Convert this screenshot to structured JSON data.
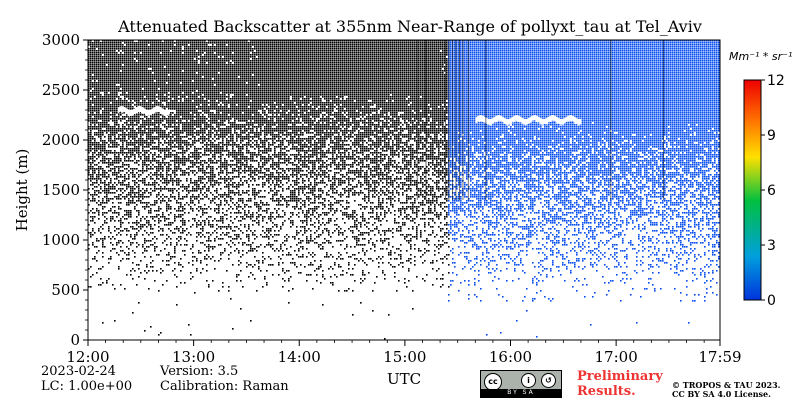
{
  "chart_data": {
    "type": "heatmap",
    "title": "Attenuated Backscatter at 355nm Near-Range of pollyxt_tau at Tel_Aviv",
    "xlabel": "UTC",
    "ylabel": "Height (m)",
    "x_ticks": [
      "12:00",
      "13:00",
      "14:00",
      "15:00",
      "16:00",
      "17:00",
      "17:59"
    ],
    "x_tick_minutes": [
      0,
      60,
      120,
      180,
      240,
      300,
      359
    ],
    "xlim_minutes": [
      0,
      359
    ],
    "y_ticks": [
      0,
      500,
      1000,
      1500,
      2000,
      2500,
      3000
    ],
    "ylim": [
      0,
      3000
    ],
    "colorbar": {
      "unit": "Mm⁻¹ * sr⁻¹",
      "ticks": [
        0,
        3,
        6,
        9,
        12
      ],
      "range": [
        0,
        12
      ],
      "colors": [
        "#0033dd",
        "#00a0dd",
        "#00c040",
        "#ffe000",
        "#ff7000",
        "#ee0000"
      ]
    },
    "regions": [
      {
        "name": "noise",
        "x_start_min": 0,
        "x_end_min": 205,
        "color": "#000000"
      },
      {
        "name": "signal",
        "x_start_min": 205,
        "x_end_min": 359,
        "color": "#0a50f0"
      }
    ],
    "cloud_layers": [
      {
        "x_start_min": 17,
        "x_end_min": 46,
        "height_m": 2290
      },
      {
        "x_start_min": 220,
        "x_end_min": 280,
        "height_m": 2200
      }
    ],
    "vertical_lines_min": [
      187,
      192,
      203,
      205,
      207,
      209,
      211,
      213,
      216,
      226,
      297,
      327
    ]
  },
  "footer": {
    "date": "2023-02-24",
    "lc": "LC: 1.00e+00",
    "version": "Version: 3.5",
    "calibration": "Calibration: Raman",
    "preliminary_line1": "Preliminary",
    "preliminary_line2": "Results.",
    "copyright_line1": "© TROPOS & TAU 2023.",
    "copyright_line2": "CC BY SA 4.0 License.",
    "cc_badge_text": "BY  SA"
  }
}
